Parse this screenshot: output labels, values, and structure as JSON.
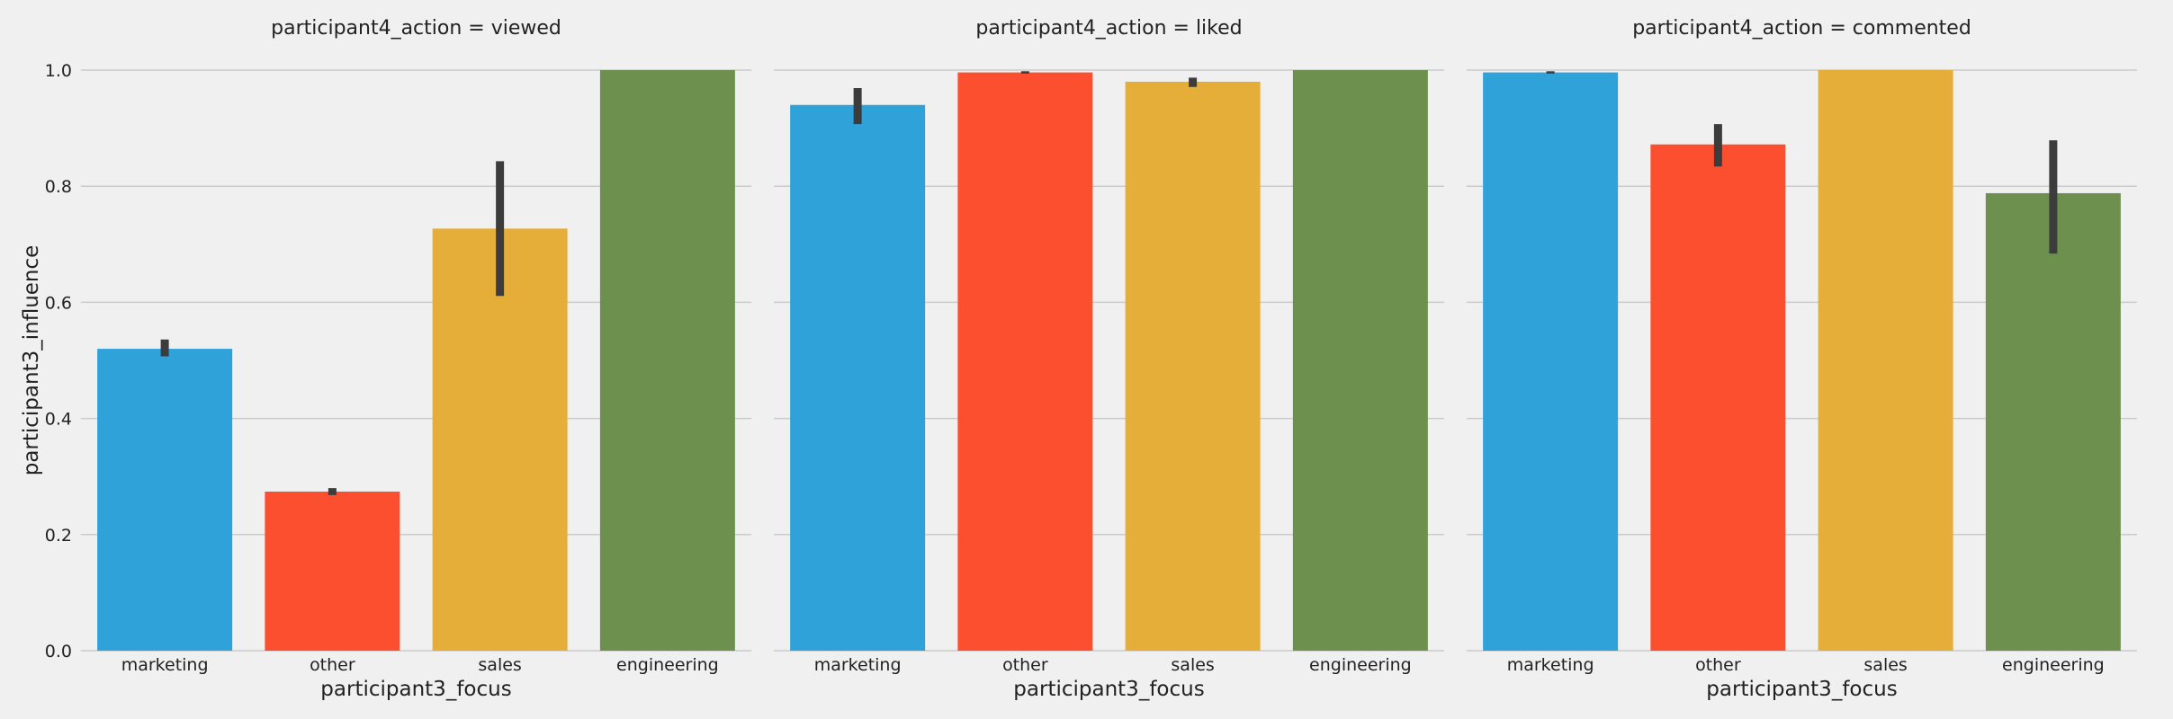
{
  "chart_data": {
    "type": "bar",
    "facet_variable": "participant4_action",
    "panels": [
      {
        "title": "participant4_action = viewed",
        "categories": [
          "marketing",
          "other",
          "sales",
          "engineering"
        ],
        "values": [
          0.52,
          0.274,
          0.727,
          1.0
        ],
        "error_low": [
          0.507,
          0.268,
          0.611,
          1.0
        ],
        "error_high": [
          0.536,
          0.28,
          0.843,
          1.0
        ]
      },
      {
        "title": "participant4_action = liked",
        "categories": [
          "marketing",
          "other",
          "sales",
          "engineering"
        ],
        "values": [
          0.94,
          0.996,
          0.98,
          1.0
        ],
        "error_low": [
          0.907,
          0.994,
          0.971,
          1.0
        ],
        "error_high": [
          0.969,
          0.998,
          0.987,
          1.0
        ]
      },
      {
        "title": "participant4_action = commented",
        "categories": [
          "marketing",
          "other",
          "sales",
          "engineering"
        ],
        "values": [
          0.996,
          0.872,
          1.0,
          0.788
        ],
        "error_low": [
          0.994,
          0.834,
          1.0,
          0.684
        ],
        "error_high": [
          0.998,
          0.907,
          1.0,
          0.879
        ]
      }
    ],
    "xlabel": "participant3_focus",
    "ylabel": "participant3_influence",
    "ylim": [
      0,
      1.0
    ],
    "yticks": [
      "0.0",
      "0.2",
      "0.4",
      "0.6",
      "0.8",
      "1.0"
    ],
    "grid": "horizontal",
    "colors": {
      "marketing": "#30a2da",
      "other": "#fc4f30",
      "sales": "#e5ae38",
      "engineering": "#6d904f"
    },
    "background": "#f0f0f0",
    "errorbar_color": "#3c3c3c"
  }
}
